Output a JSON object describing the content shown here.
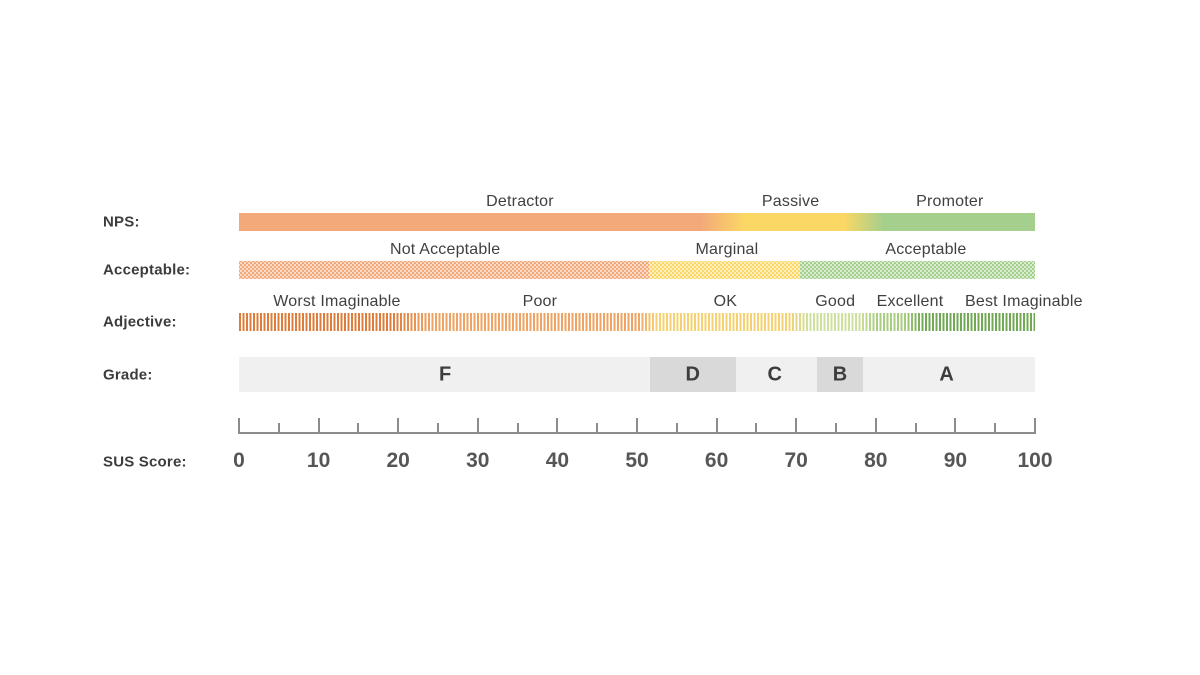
{
  "chart_data": {
    "type": "bar",
    "variant": "sus-score-interpretation-scale",
    "title": "",
    "background": "#FFFFFF",
    "axis": {
      "label": "SUS Score:",
      "min": 0,
      "max": 100,
      "tick_step": 5,
      "label_step": 10,
      "tick_labels": [
        "0",
        "10",
        "20",
        "30",
        "40",
        "50",
        "60",
        "70",
        "80",
        "90",
        "100"
      ]
    },
    "rows": [
      {
        "id": "nps",
        "label": "NPS:",
        "texture": "solid",
        "bands": [
          {
            "label": "Detractor",
            "start": 0,
            "end": 58,
            "label_center": 35.3,
            "color": "#F3A97A"
          },
          {
            "label": "Passive",
            "start": 63.5,
            "end": 76,
            "label_center": 69.3,
            "color": "#FBD765"
          },
          {
            "label": "Promoter",
            "start": 81,
            "end": 100,
            "label_center": 89.3,
            "color": "#A5CF8C"
          }
        ]
      },
      {
        "id": "acceptable",
        "label": "Acceptable:",
        "texture": "dotted",
        "bands": [
          {
            "label": "Not Acceptable",
            "start": 0,
            "end": 51.5,
            "label_center": 25.9,
            "color": "#F2A878"
          },
          {
            "label": "Marginal",
            "start": 51.5,
            "end": 70.5,
            "label_center": 61.3,
            "color": "#FBD765"
          },
          {
            "label": "Acceptable",
            "start": 70.5,
            "end": 100,
            "label_center": 86.3,
            "color": "#A5CF8C"
          }
        ]
      },
      {
        "id": "adjective",
        "label": "Adjective:",
        "texture": "striped",
        "bands": [
          {
            "label": "Worst Imaginable",
            "start": 0,
            "end": 19,
            "label_center": 12.3,
            "color": "#DD7C3B"
          },
          {
            "label": "Poor",
            "start": 24,
            "end": 50,
            "label_center": 37.8,
            "color": "#EFA262"
          },
          {
            "label": "OK",
            "start": 52.5,
            "end": 69,
            "label_center": 61.1,
            "color": "#F6D172"
          },
          {
            "label": "Good",
            "start": 71.5,
            "end": 78,
            "label_center": 74.9,
            "color": "#CDE09C"
          },
          {
            "label": "Excellent",
            "start": 80,
            "end": 83.5,
            "label_center": 84.3,
            "color": "#A9CD80"
          },
          {
            "label": "Best Imaginable",
            "start": 86,
            "end": 100,
            "label_center": 98.6,
            "color": "#71A854"
          }
        ]
      },
      {
        "id": "grade",
        "label": "Grade:",
        "texture": "grade",
        "base_color": "#F0F0F0",
        "highlight_color": "#D9D9D9",
        "bands": [
          {
            "label": "F",
            "start": 0,
            "end": 51.6,
            "highlight": false,
            "label_center": 25.9
          },
          {
            "label": "D",
            "start": 51.6,
            "end": 62.4,
            "highlight": true,
            "label_center": 57.0
          },
          {
            "label": "C",
            "start": 62.4,
            "end": 72.6,
            "highlight": false,
            "label_center": 67.3
          },
          {
            "label": "B",
            "start": 72.6,
            "end": 78.4,
            "highlight": true,
            "label_center": 75.5
          },
          {
            "label": "A",
            "start": 78.4,
            "end": 100,
            "highlight": false,
            "label_center": 88.9
          }
        ]
      }
    ],
    "colors": {
      "axis": "#8C8C8C",
      "tick_label": "#565656",
      "row_label": "#3C3C3C",
      "band_label": "#404040",
      "grade_letter": "#3D3D3D"
    }
  }
}
